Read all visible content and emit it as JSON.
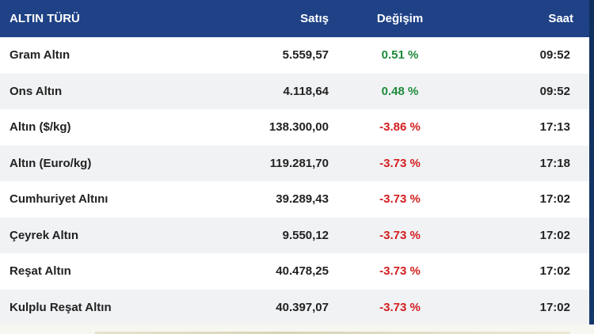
{
  "colors": {
    "header_bg": "#1f4286",
    "positive": "#1e8a3c",
    "negative": "#d21e1e",
    "row_alt": "#f1f2f4"
  },
  "table": {
    "headers": [
      "ALTIN TÜRÜ",
      "Satış",
      "Değişim",
      "Saat"
    ],
    "rows": [
      {
        "name": "Gram Altın",
        "sale": "5.559,57",
        "change": "0.51 %",
        "direction": "up",
        "time": "09:52"
      },
      {
        "name": "Ons Altın",
        "sale": "4.118,64",
        "change": "0.48 %",
        "direction": "up",
        "time": "09:52"
      },
      {
        "name": "Altın ($/kg)",
        "sale": "138.300,00",
        "change": "-3.86 %",
        "direction": "down",
        "time": "17:13"
      },
      {
        "name": "Altın (Euro/kg)",
        "sale": "119.281,70",
        "change": "-3.73 %",
        "direction": "down",
        "time": "17:18"
      },
      {
        "name": "Cumhuriyet Altını",
        "sale": "39.289,43",
        "change": "-3.73 %",
        "direction": "down",
        "time": "17:02"
      },
      {
        "name": "Çeyrek Altın",
        "sale": "9.550,12",
        "change": "-3.73 %",
        "direction": "down",
        "time": "17:02"
      },
      {
        "name": "Reşat Altın",
        "sale": "40.478,25",
        "change": "-3.73 %",
        "direction": "down",
        "time": "17:02"
      },
      {
        "name": "Kulplu Reşat Altın",
        "sale": "40.397,07",
        "change": "-3.73 %",
        "direction": "down",
        "time": "17:02"
      }
    ]
  }
}
